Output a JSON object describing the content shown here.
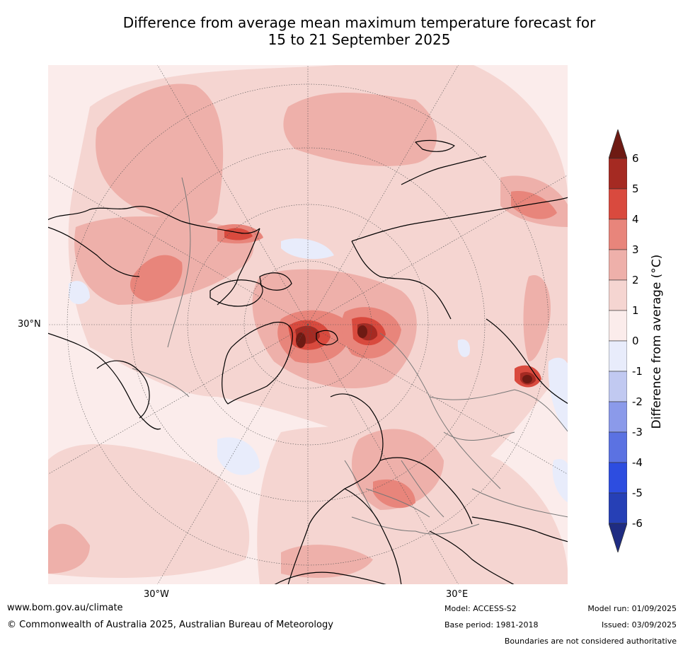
{
  "title_line1": "Difference from average mean maximum temperature forecast for",
  "title_line2": "15 to 21 September 2025",
  "map": {
    "projection": "north-polar-stereographic",
    "lat_label": "30°N",
    "lon_labels": [
      "30°W",
      "30°E"
    ],
    "features": [
      "coastlines",
      "country-boundaries",
      "graticule"
    ]
  },
  "colorbar": {
    "label": "Difference from average (°C)",
    "ticks": [
      "6",
      "5",
      "4",
      "3",
      "2",
      "1",
      "0",
      "-1",
      "-2",
      "-3",
      "-4",
      "-5",
      "-6"
    ],
    "colors": [
      "#6e1a13",
      "#a52a22",
      "#d94a3e",
      "#e8857b",
      "#eeb0aa",
      "#f5d5d1",
      "#fbeceb",
      "#e8ecfb",
      "#c1c9f1",
      "#8b9aea",
      "#5b72e2",
      "#2d4de0",
      "#2640b6",
      "#1f2c82"
    ]
  },
  "footer": {
    "website": "www.bom.gov.au/climate",
    "copyright": "© Commonwealth of Australia 2025, Australian Bureau of Meteorology",
    "model": "Model: ACCESS-S2",
    "base_period": "Base period: 1981-2018",
    "model_run": "Model run: 01/09/2025",
    "issued": "Issued: 03/09/2025",
    "disclaimer": "Boundaries are not considered authoritative"
  }
}
